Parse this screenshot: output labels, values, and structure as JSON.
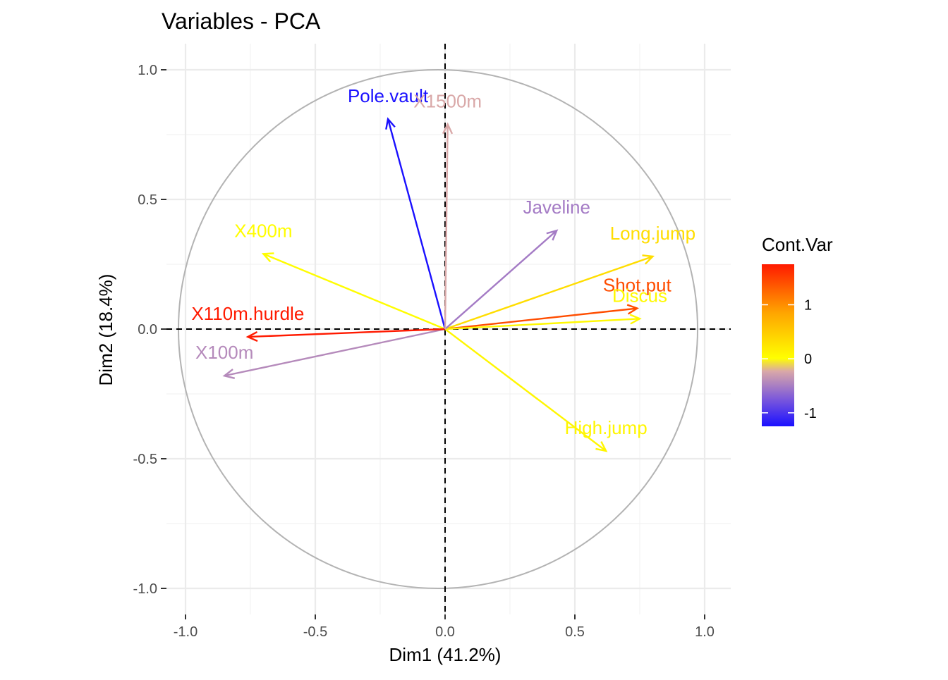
{
  "chart_data": {
    "type": "scatter",
    "subtype": "pca-variable-correlation-circle",
    "title": "Variables - PCA",
    "xlabel": "Dim1 (41.2%)",
    "ylabel": "Dim2 (18.4%)",
    "xlim": [
      -1.1,
      1.1
    ],
    "ylim": [
      -1.1,
      1.1
    ],
    "x_ticks": [
      -1.0,
      -0.5,
      0.0,
      0.5,
      1.0
    ],
    "y_ticks": [
      -1.0,
      -0.5,
      0.0,
      0.5,
      1.0
    ],
    "x_tick_labels": [
      "-1.0",
      "-0.5",
      "0.0",
      "0.5",
      "1.0"
    ],
    "y_tick_labels": [
      "-1.0",
      "-0.5",
      "0.0",
      "0.5",
      "1.0"
    ],
    "grid": true,
    "unit_circle": true,
    "reference_lines": [
      0,
      0
    ],
    "legend": {
      "title": "Cont.Var",
      "placement": "right",
      "range": [
        -1.25,
        1.75
      ],
      "ticks": [
        -1,
        0,
        1
      ],
      "tick_labels": [
        "-1",
        "0",
        "1"
      ],
      "gradient": [
        "#0000ff",
        "#ffff00",
        "#ff0000"
      ]
    },
    "variables": [
      {
        "name": "X100m",
        "x": -0.85,
        "y": -0.18,
        "cont": -0.45
      },
      {
        "name": "Long.jump",
        "x": 0.8,
        "y": 0.28,
        "cont": 0.3
      },
      {
        "name": "Shot.put",
        "x": 0.74,
        "y": 0.08,
        "cont": 1.4
      },
      {
        "name": "High.jump",
        "x": 0.62,
        "y": -0.47,
        "cont": 0.08
      },
      {
        "name": "X400m",
        "x": -0.7,
        "y": 0.29,
        "cont": 0.02
      },
      {
        "name": "X110m.hurdle",
        "x": -0.76,
        "y": -0.03,
        "cont": 1.75
      },
      {
        "name": "Discus",
        "x": 0.75,
        "y": 0.04,
        "cont": 0.05
      },
      {
        "name": "Pole.vault",
        "x": -0.22,
        "y": 0.81,
        "cont": -1.25
      },
      {
        "name": "Javeline",
        "x": 0.43,
        "y": 0.38,
        "cont": -0.55
      },
      {
        "name": "X1500m",
        "x": 0.01,
        "y": 0.79,
        "cont": -0.25
      }
    ]
  }
}
